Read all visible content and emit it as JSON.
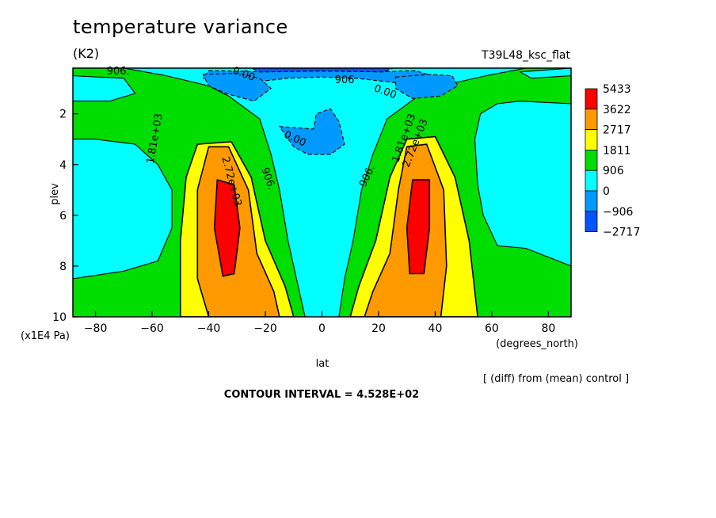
{
  "chart_data": {
    "type": "heatmap",
    "title": "temperature variance",
    "units": "(K2)",
    "experiment": "T39L48_ksc_flat",
    "xlabel": "lat",
    "x_units": "(degrees_north)",
    "ylabel": "plev",
    "y_units": "(x1E4 Pa)",
    "xlim": [
      -88,
      88
    ],
    "ylim": [
      10,
      0.2
    ],
    "x_ticks": [
      -80,
      -60,
      -40,
      -20,
      0,
      20,
      40,
      60,
      80
    ],
    "y_ticks": [
      2,
      4,
      6,
      8,
      10
    ],
    "legend_levels": [
      "5433",
      "3622",
      "2717",
      "1811",
      "906",
      "0",
      "−906",
      "−2717"
    ],
    "legend_colors": [
      "#ff0000",
      "#ff9900",
      "#ffff00",
      "#00dd00",
      "#00ffff",
      "#0099ff",
      "#0055ff"
    ],
    "contour_labels": [
      "906.",
      "0.00",
      "906",
      "0.00",
      "0.00",
      "1.81e+03",
      "2.72e+03",
      "906.",
      "906.",
      "1.81e+03",
      "2.72e+03"
    ],
    "note": "[ (diff) from (mean) control ]",
    "contour_interval": "CONTOUR INTERVAL = 4.528E+02",
    "regions": [
      {
        "name": "red-south",
        "level": 5433,
        "points": [
          [
            -37,
            4.6
          ],
          [
            -31,
            4.8
          ],
          [
            -29,
            6.5
          ],
          [
            -31,
            8.3
          ],
          [
            -35,
            8.4
          ],
          [
            -38,
            6.5
          ]
        ]
      },
      {
        "name": "red-north",
        "level": 5433,
        "points": [
          [
            32,
            4.6
          ],
          [
            38,
            4.6
          ],
          [
            38,
            6.5
          ],
          [
            36,
            8.3
          ],
          [
            31,
            8.3
          ],
          [
            30,
            6.5
          ]
        ]
      },
      {
        "name": "orange-south",
        "level": 3622,
        "points": [
          [
            -40,
            3.3
          ],
          [
            -33,
            3.3
          ],
          [
            -26,
            5
          ],
          [
            -23,
            7.5
          ],
          [
            -17,
            9
          ],
          [
            -15,
            10
          ],
          [
            -40,
            10
          ],
          [
            -44,
            8.5
          ],
          [
            -44,
            5
          ]
        ]
      },
      {
        "name": "orange-north",
        "level": 3622,
        "points": [
          [
            30,
            3.3
          ],
          [
            37,
            3.2
          ],
          [
            43,
            5
          ],
          [
            44,
            8
          ],
          [
            42,
            10
          ],
          [
            15,
            10
          ],
          [
            18,
            9
          ],
          [
            24,
            7.5
          ],
          [
            27,
            5
          ]
        ]
      },
      {
        "name": "yellow-south",
        "level": 2717,
        "points": [
          [
            -44,
            3.2
          ],
          [
            -32,
            3.1
          ],
          [
            -25,
            4.5
          ],
          [
            -20,
            7
          ],
          [
            -13,
            8.8
          ],
          [
            -10,
            10
          ],
          [
            -50,
            10
          ],
          [
            -50,
            7
          ],
          [
            -48,
            4.5
          ]
        ]
      },
      {
        "name": "yellow-north",
        "level": 2717,
        "points": [
          [
            30,
            3
          ],
          [
            40,
            2.9
          ],
          [
            47,
            4.5
          ],
          [
            52,
            7
          ],
          [
            55,
            10
          ],
          [
            10,
            10
          ],
          [
            13,
            8.8
          ],
          [
            19,
            7
          ],
          [
            24,
            4.5
          ]
        ]
      },
      {
        "name": "green-south",
        "level": 1811,
        "points": [
          [
            -88,
            0.2
          ],
          [
            -70,
            0.2
          ],
          [
            -55,
            0.5
          ],
          [
            -40,
            0.9
          ],
          [
            -33,
            1.3
          ],
          [
            -22,
            2.2
          ],
          [
            -18,
            3.6
          ],
          [
            -15,
            5
          ],
          [
            -12,
            7
          ],
          [
            -9,
            8.5
          ],
          [
            -6,
            10
          ],
          [
            -88,
            10
          ],
          [
            -88,
            8.5
          ],
          [
            -70,
            8.2
          ],
          [
            -58,
            7.8
          ],
          [
            -53,
            6.5
          ],
          [
            -53,
            5
          ],
          [
            -58,
            4
          ],
          [
            -66,
            3.2
          ],
          [
            -80,
            3
          ],
          [
            -88,
            3
          ],
          [
            -88,
            1.5
          ],
          [
            -75,
            1.5
          ],
          [
            -66,
            1.2
          ],
          [
            -70,
            0.6
          ],
          [
            -88,
            0.5
          ]
        ]
      },
      {
        "name": "green-north",
        "level": 1811,
        "points": [
          [
            88,
            0.2
          ],
          [
            72,
            0.2
          ],
          [
            58,
            0.5
          ],
          [
            42,
            0.9
          ],
          [
            34,
            1.3
          ],
          [
            23,
            2.2
          ],
          [
            18,
            3.6
          ],
          [
            14,
            5
          ],
          [
            11,
            7
          ],
          [
            8,
            8.5
          ],
          [
            6,
            10
          ],
          [
            88,
            10
          ],
          [
            88,
            8
          ],
          [
            72,
            7.3
          ],
          [
            62,
            7.2
          ],
          [
            57,
            6
          ],
          [
            55,
            4.8
          ],
          [
            54,
            3
          ],
          [
            56,
            2
          ],
          [
            62,
            1.6
          ],
          [
            70,
            1.5
          ],
          [
            88,
            1.6
          ],
          [
            88,
            0.5
          ],
          [
            74,
            0.6
          ],
          [
            70,
            0.35
          ]
        ]
      },
      {
        "name": "blue-top-centre",
        "level": -906,
        "points": [
          [
            -40,
            0.3
          ],
          [
            -20,
            0.35
          ],
          [
            -5,
            0.25
          ],
          [
            5,
            0.25
          ],
          [
            20,
            0.35
          ],
          [
            33,
            0.3
          ],
          [
            42,
            0.6
          ],
          [
            28,
            0.8
          ],
          [
            12,
            0.6
          ],
          [
            0,
            0.55
          ],
          [
            -12,
            0.6
          ],
          [
            -28,
            0.8
          ],
          [
            -42,
            0.6
          ]
        ]
      },
      {
        "name": "blue-south",
        "level": -906,
        "points": [
          [
            -42,
            0.45
          ],
          [
            -30,
            0.4
          ],
          [
            -22,
            0.6
          ],
          [
            -18,
            1.0
          ],
          [
            -24,
            1.5
          ],
          [
            -34,
            1.2
          ],
          [
            -40,
            0.9
          ]
        ]
      },
      {
        "name": "blue-north",
        "level": -906,
        "points": [
          [
            26,
            0.55
          ],
          [
            38,
            0.45
          ],
          [
            46,
            0.5
          ],
          [
            48,
            0.9
          ],
          [
            42,
            1.3
          ],
          [
            32,
            1.4
          ],
          [
            26,
            1.0
          ]
        ]
      },
      {
        "name": "blue-centre",
        "level": -906,
        "points": [
          [
            -15,
            2.5
          ],
          [
            -3,
            2.6
          ],
          [
            -2,
            2.0
          ],
          [
            3,
            1.8
          ],
          [
            6,
            2.3
          ],
          [
            8,
            3.2
          ],
          [
            3,
            3.6
          ],
          [
            -5,
            3.6
          ],
          [
            -10,
            3.3
          ]
        ]
      },
      {
        "name": "blue-top-strip",
        "level": -2717,
        "points": [
          [
            -25,
            0.2
          ],
          [
            25,
            0.2
          ],
          [
            22,
            0.35
          ],
          [
            0,
            0.32
          ],
          [
            -22,
            0.35
          ]
        ]
      }
    ]
  }
}
